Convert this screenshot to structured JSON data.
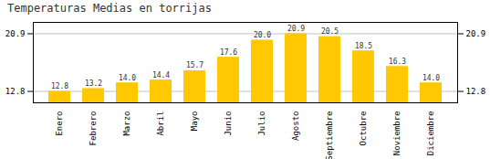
{
  "chart_data": {
    "type": "bar",
    "title": "Temperaturas Medias en torrijas",
    "categories": [
      "Enero",
      "Febrero",
      "Marzo",
      "Abril",
      "Mayo",
      "Junio",
      "Julio",
      "Agosto",
      "Septiembre",
      "Octubre",
      "Noviembre",
      "Diciembre"
    ],
    "values": [
      12.8,
      13.2,
      14.0,
      14.4,
      15.7,
      17.6,
      20.0,
      20.9,
      20.5,
      18.5,
      16.3,
      14.0
    ],
    "value_labels": [
      "12.8",
      "13.2",
      "14.0",
      "14.4",
      "15.7",
      "17.6",
      "20.0",
      "20.9",
      "20.5",
      "18.5",
      "16.3",
      "14.0"
    ],
    "color": "#FFC800",
    "ylim": [
      11.2,
      22.5
    ],
    "yticks": [
      12.8,
      20.9
    ],
    "grid": true,
    "data_labels": true
  }
}
